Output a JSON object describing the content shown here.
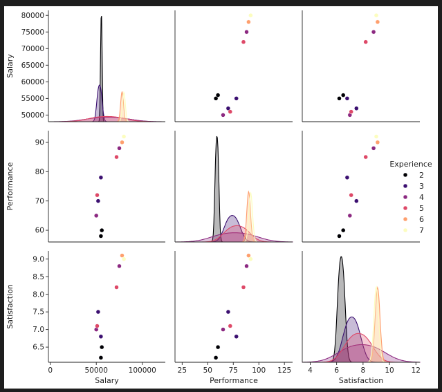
{
  "chart_data": {
    "type": "scatter",
    "variables": [
      "Salary",
      "Performance",
      "Satisfaction"
    ],
    "hue": "Experience",
    "legend": {
      "title": "Experience",
      "placement": "right",
      "entries": [
        {
          "label": "2",
          "color": "#000004"
        },
        {
          "label": "3",
          "color": "#3b0f70"
        },
        {
          "label": "4",
          "color": "#8c2981"
        },
        {
          "label": "5",
          "color": "#de4968"
        },
        {
          "label": "6",
          "color": "#fe9f6d"
        },
        {
          "label": "7",
          "color": "#fcfdbf"
        }
      ]
    },
    "axes": {
      "Salary": {
        "range": [
          -2000,
          125000
        ],
        "ticks": [
          0,
          50000,
          100000
        ],
        "tick_labels": [
          "0",
          "50000",
          "100000"
        ]
      },
      "Performance": {
        "range": [
          18,
          133
        ],
        "ticks": [
          25,
          50,
          75,
          100,
          125
        ],
        "tick_labels": [
          "25",
          "50",
          "75",
          "100",
          "125"
        ]
      },
      "Satisfaction": {
        "range": [
          3.4,
          12.3
        ],
        "ticks": [
          4,
          6,
          8,
          10,
          12
        ],
        "tick_labels": [
          "4",
          "6",
          "8",
          "10",
          "12"
        ]
      }
    },
    "row_axes": {
      "Salary": {
        "range": [
          48000,
          81500
        ],
        "ticks": [
          50000,
          55000,
          60000,
          65000,
          70000,
          75000,
          80000
        ],
        "tick_labels": [
          "50000",
          "55000",
          "60000",
          "65000",
          "70000",
          "75000",
          "80000"
        ]
      },
      "Performance": {
        "range": [
          56,
          94
        ],
        "ticks": [
          60,
          70,
          80,
          90
        ],
        "tick_labels": [
          "60",
          "70",
          "80",
          "90"
        ]
      },
      "Satisfaction": {
        "range": [
          6.07,
          9.23
        ],
        "ticks": [
          6.5,
          7.0,
          7.5,
          8.0,
          8.5,
          9.0
        ],
        "tick_labels": [
          "6.5",
          "7.0",
          "7.5",
          "8.0",
          "8.5",
          "9.0"
        ]
      }
    },
    "points": [
      {
        "Salary": 55000,
        "Performance": 58,
        "Satisfaction": 6.2,
        "Experience": 2
      },
      {
        "Salary": 56000,
        "Performance": 60,
        "Satisfaction": 6.5,
        "Experience": 2
      },
      {
        "Salary": 52000,
        "Performance": 70,
        "Satisfaction": 7.5,
        "Experience": 3
      },
      {
        "Salary": 55000,
        "Performance": 78,
        "Satisfaction": 6.8,
        "Experience": 3
      },
      {
        "Salary": 50000,
        "Performance": 65,
        "Satisfaction": 7.0,
        "Experience": 4
      },
      {
        "Salary": 75000,
        "Performance": 88,
        "Satisfaction": 8.8,
        "Experience": 4
      },
      {
        "Salary": 51000,
        "Performance": 72,
        "Satisfaction": 7.1,
        "Experience": 5
      },
      {
        "Salary": 72000,
        "Performance": 85,
        "Satisfaction": 8.2,
        "Experience": 5
      },
      {
        "Salary": 78000,
        "Performance": 90,
        "Satisfaction": 9.1,
        "Experience": 6
      },
      {
        "Salary": 80000,
        "Performance": 92,
        "Satisfaction": 9.0,
        "Experience": 7
      }
    ],
    "grid": false
  }
}
